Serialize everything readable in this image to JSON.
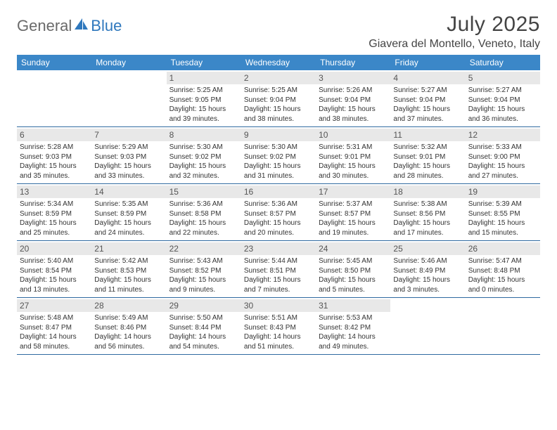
{
  "logo": {
    "part1": "General",
    "part2": "Blue"
  },
  "title": "July 2025",
  "location": "Giavera del Montello, Veneto, Italy",
  "colors": {
    "header_bg": "#3b87c8",
    "header_text": "#ffffff",
    "daynum_bg": "#e8e8e8",
    "rule": "#2f6aa0",
    "logo_gray": "#6a6a6a",
    "logo_blue": "#2f78bd",
    "title_color": "#444444"
  },
  "day_headers": [
    "Sunday",
    "Monday",
    "Tuesday",
    "Wednesday",
    "Thursday",
    "Friday",
    "Saturday"
  ],
  "weeks": [
    [
      {
        "blank": true
      },
      {
        "blank": true
      },
      {
        "n": "1",
        "sunrise": "5:25 AM",
        "sunset": "9:05 PM",
        "dl": "15 hours and 39 minutes."
      },
      {
        "n": "2",
        "sunrise": "5:25 AM",
        "sunset": "9:04 PM",
        "dl": "15 hours and 38 minutes."
      },
      {
        "n": "3",
        "sunrise": "5:26 AM",
        "sunset": "9:04 PM",
        "dl": "15 hours and 38 minutes."
      },
      {
        "n": "4",
        "sunrise": "5:27 AM",
        "sunset": "9:04 PM",
        "dl": "15 hours and 37 minutes."
      },
      {
        "n": "5",
        "sunrise": "5:27 AM",
        "sunset": "9:04 PM",
        "dl": "15 hours and 36 minutes."
      }
    ],
    [
      {
        "n": "6",
        "sunrise": "5:28 AM",
        "sunset": "9:03 PM",
        "dl": "15 hours and 35 minutes."
      },
      {
        "n": "7",
        "sunrise": "5:29 AM",
        "sunset": "9:03 PM",
        "dl": "15 hours and 33 minutes."
      },
      {
        "n": "8",
        "sunrise": "5:30 AM",
        "sunset": "9:02 PM",
        "dl": "15 hours and 32 minutes."
      },
      {
        "n": "9",
        "sunrise": "5:30 AM",
        "sunset": "9:02 PM",
        "dl": "15 hours and 31 minutes."
      },
      {
        "n": "10",
        "sunrise": "5:31 AM",
        "sunset": "9:01 PM",
        "dl": "15 hours and 30 minutes."
      },
      {
        "n": "11",
        "sunrise": "5:32 AM",
        "sunset": "9:01 PM",
        "dl": "15 hours and 28 minutes."
      },
      {
        "n": "12",
        "sunrise": "5:33 AM",
        "sunset": "9:00 PM",
        "dl": "15 hours and 27 minutes."
      }
    ],
    [
      {
        "n": "13",
        "sunrise": "5:34 AM",
        "sunset": "8:59 PM",
        "dl": "15 hours and 25 minutes."
      },
      {
        "n": "14",
        "sunrise": "5:35 AM",
        "sunset": "8:59 PM",
        "dl": "15 hours and 24 minutes."
      },
      {
        "n": "15",
        "sunrise": "5:36 AM",
        "sunset": "8:58 PM",
        "dl": "15 hours and 22 minutes."
      },
      {
        "n": "16",
        "sunrise": "5:36 AM",
        "sunset": "8:57 PM",
        "dl": "15 hours and 20 minutes."
      },
      {
        "n": "17",
        "sunrise": "5:37 AM",
        "sunset": "8:57 PM",
        "dl": "15 hours and 19 minutes."
      },
      {
        "n": "18",
        "sunrise": "5:38 AM",
        "sunset": "8:56 PM",
        "dl": "15 hours and 17 minutes."
      },
      {
        "n": "19",
        "sunrise": "5:39 AM",
        "sunset": "8:55 PM",
        "dl": "15 hours and 15 minutes."
      }
    ],
    [
      {
        "n": "20",
        "sunrise": "5:40 AM",
        "sunset": "8:54 PM",
        "dl": "15 hours and 13 minutes."
      },
      {
        "n": "21",
        "sunrise": "5:42 AM",
        "sunset": "8:53 PM",
        "dl": "15 hours and 11 minutes."
      },
      {
        "n": "22",
        "sunrise": "5:43 AM",
        "sunset": "8:52 PM",
        "dl": "15 hours and 9 minutes."
      },
      {
        "n": "23",
        "sunrise": "5:44 AM",
        "sunset": "8:51 PM",
        "dl": "15 hours and 7 minutes."
      },
      {
        "n": "24",
        "sunrise": "5:45 AM",
        "sunset": "8:50 PM",
        "dl": "15 hours and 5 minutes."
      },
      {
        "n": "25",
        "sunrise": "5:46 AM",
        "sunset": "8:49 PM",
        "dl": "15 hours and 3 minutes."
      },
      {
        "n": "26",
        "sunrise": "5:47 AM",
        "sunset": "8:48 PM",
        "dl": "15 hours and 0 minutes."
      }
    ],
    [
      {
        "n": "27",
        "sunrise": "5:48 AM",
        "sunset": "8:47 PM",
        "dl": "14 hours and 58 minutes."
      },
      {
        "n": "28",
        "sunrise": "5:49 AM",
        "sunset": "8:46 PM",
        "dl": "14 hours and 56 minutes."
      },
      {
        "n": "29",
        "sunrise": "5:50 AM",
        "sunset": "8:44 PM",
        "dl": "14 hours and 54 minutes."
      },
      {
        "n": "30",
        "sunrise": "5:51 AM",
        "sunset": "8:43 PM",
        "dl": "14 hours and 51 minutes."
      },
      {
        "n": "31",
        "sunrise": "5:53 AM",
        "sunset": "8:42 PM",
        "dl": "14 hours and 49 minutes."
      },
      {
        "blank": true
      },
      {
        "blank": true
      }
    ]
  ],
  "labels": {
    "sunrise": "Sunrise:",
    "sunset": "Sunset:",
    "daylight": "Daylight:"
  }
}
